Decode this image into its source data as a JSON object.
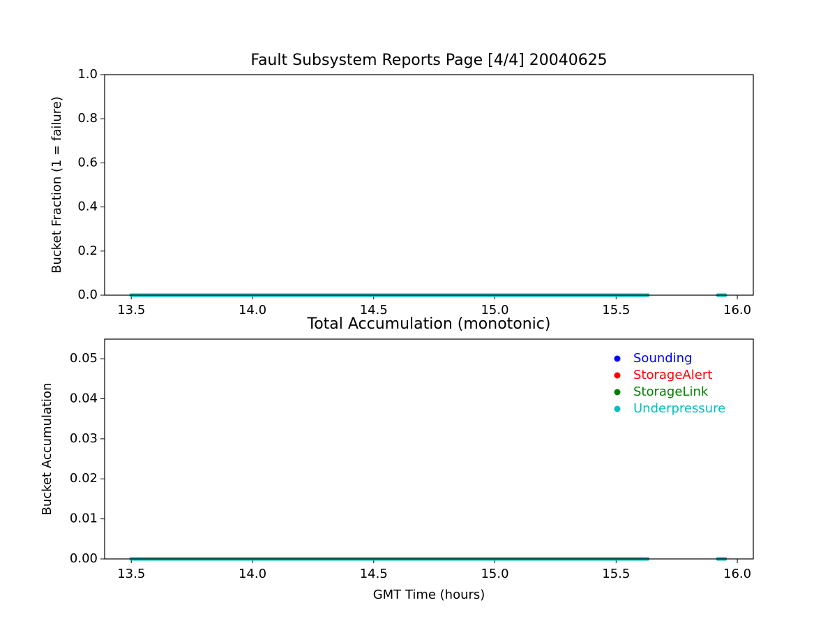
{
  "chart_data": [
    {
      "type": "line",
      "title": "Fault Subsystem Reports Page [4/4] 20040625",
      "y_label": "Bucket Fraction (1 = failure)",
      "x": [
        13.5,
        13.75,
        14.0,
        14.25,
        14.5,
        14.75,
        15.0,
        15.25,
        15.5,
        15.63,
        15.8,
        15.92,
        15.95
      ],
      "series": [
        {
          "color": "#0000ff",
          "values": [
            0,
            0,
            0,
            0,
            0,
            0,
            0,
            0,
            0,
            0,
            null,
            0,
            0
          ]
        },
        {
          "color": "#ff0000",
          "values": [
            0,
            0,
            0,
            0,
            0,
            0,
            0,
            0,
            0,
            0,
            null,
            0,
            0
          ]
        },
        {
          "color": "#008000",
          "values": [
            0,
            0,
            0,
            0,
            0,
            0,
            0,
            0,
            0,
            0,
            null,
            0,
            0
          ]
        },
        {
          "color": "#00bfbf",
          "values": [
            0,
            0,
            0,
            0,
            0,
            0,
            0,
            0,
            0,
            0,
            null,
            0,
            0
          ]
        }
      ],
      "xlim": [
        13.39,
        16.066
      ],
      "xticks": [
        13.5,
        {
          "value": 14.0,
          "label": "14.0"
        },
        14.5,
        {
          "value": 15.0,
          "label": "15.0"
        },
        15.5,
        {
          "value": 16.0,
          "label": "16.0"
        }
      ],
      "ylim": [
        0,
        1
      ],
      "yticks": [
        {
          "value": 0,
          "label": "0.0"
        },
        0.2,
        0.4,
        0.6,
        0.8,
        {
          "value": 1,
          "label": "1.0"
        }
      ]
    },
    {
      "type": "line",
      "title": "Total Accumulation (monotonic)",
      "x_label": "GMT Time (hours)",
      "y_label": "Bucket Accumulation",
      "x": [
        13.5,
        13.75,
        14.0,
        14.25,
        14.5,
        14.75,
        15.0,
        15.25,
        15.5,
        15.63,
        15.8,
        15.92,
        15.95
      ],
      "series": [
        {
          "name": "Sounding",
          "color": "#0000ff",
          "values": [
            0,
            0,
            0,
            0,
            0,
            0,
            0,
            0,
            0,
            0,
            null,
            0,
            0
          ]
        },
        {
          "name": "StorageAlert",
          "color": "#ff0000",
          "values": [
            0,
            0,
            0,
            0,
            0,
            0,
            0,
            0,
            0,
            0,
            null,
            0,
            0
          ]
        },
        {
          "name": "StorageLink",
          "color": "#008000",
          "values": [
            0,
            0,
            0,
            0,
            0,
            0,
            0,
            0,
            0,
            0,
            null,
            0,
            0
          ]
        },
        {
          "name": "Underpressure",
          "color": "#00bfbf",
          "values": [
            0,
            0,
            0,
            0,
            0,
            0,
            0,
            0,
            0,
            0,
            null,
            0,
            0
          ]
        }
      ],
      "legend": "upper right",
      "xlim": [
        13.39,
        16.066
      ],
      "xticks": [
        13.5,
        {
          "value": 14.0,
          "label": "14.0"
        },
        14.5,
        {
          "value": 15.0,
          "label": "15.0"
        },
        15.5,
        {
          "value": 16.0,
          "label": "16.0"
        }
      ],
      "ylim": [
        0,
        0.0549
      ],
      "yticks": [
        {
          "value": 0,
          "label": "0.00"
        },
        {
          "value": 0.01,
          "label": "0.01"
        },
        {
          "value": 0.02,
          "label": "0.02"
        },
        {
          "value": 0.03,
          "label": "0.03"
        },
        {
          "value": 0.04,
          "label": "0.04"
        },
        {
          "value": 0.05,
          "label": "0.05"
        }
      ]
    }
  ]
}
